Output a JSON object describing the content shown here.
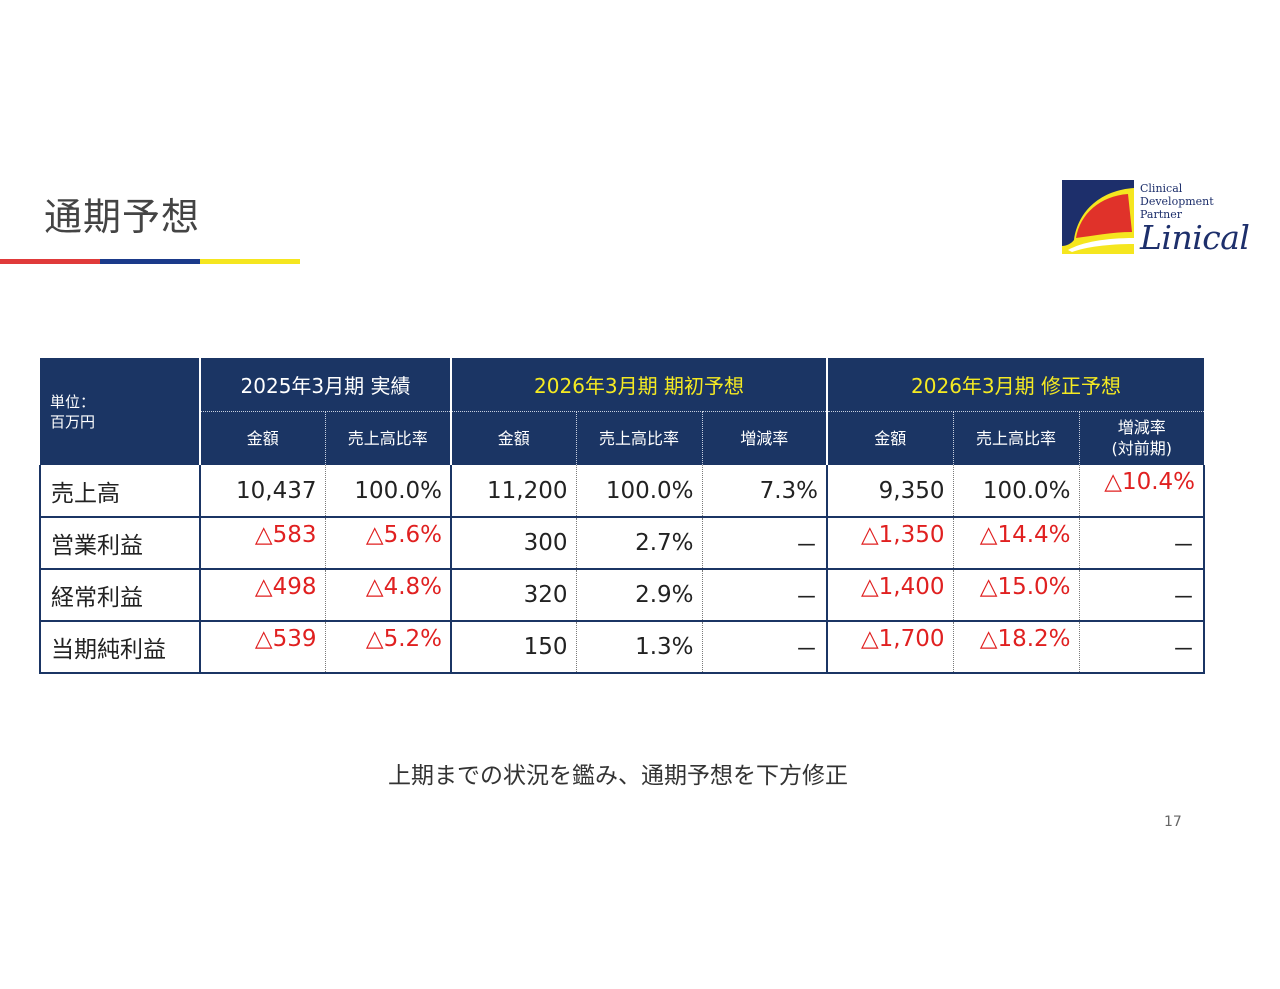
{
  "slide": {
    "title": "通期予想",
    "comment": "上期までの状況を鑑み、通期予想を下方修正",
    "page_number": "17",
    "accent_colors": [
      "#e03a3a",
      "#1b3a8a",
      "#f5e61f"
    ]
  },
  "logo": {
    "sub_lines": [
      "Clinical",
      "Development",
      "Partner"
    ],
    "name": "Linical",
    "colors": {
      "navy": "#1d2f6b",
      "red": "#e0322a",
      "yellow": "#f5e61f"
    }
  },
  "table": {
    "unit_line1": "単位：",
    "unit_line2": "百万円",
    "groups": [
      "2025年3月期 実績",
      "2026年3月期 期初予想",
      "2026年3月期 修正予想"
    ],
    "subheaders": {
      "amount": "金額",
      "ratio": "売上高比率",
      "change": "増減率",
      "change_line1": "増減率",
      "change_line2": "(対前期)"
    },
    "rows": [
      {
        "label": "売上高",
        "cells": [
          "10,437",
          "100.0%",
          "11,200",
          "100.0%",
          "7.3%",
          "9,350",
          "100.0%",
          "△10.4%"
        ]
      },
      {
        "label": "営業利益",
        "cells": [
          "△583",
          "△5.6%",
          "300",
          "2.7%",
          "－",
          "△1,350",
          "△14.4%",
          "－"
        ]
      },
      {
        "label": "経常利益",
        "cells": [
          "△498",
          "△4.8%",
          "320",
          "2.9%",
          "－",
          "△1,400",
          "△15.0%",
          "－"
        ]
      },
      {
        "label": "当期純利益",
        "cells": [
          "△539",
          "△5.2%",
          "150",
          "1.3%",
          "－",
          "△1,700",
          "△18.2%",
          "－"
        ]
      }
    ],
    "colors": {
      "header_bg": "#1b3564",
      "highlight_text": "#f5ea22",
      "negative": "#e02020"
    }
  }
}
